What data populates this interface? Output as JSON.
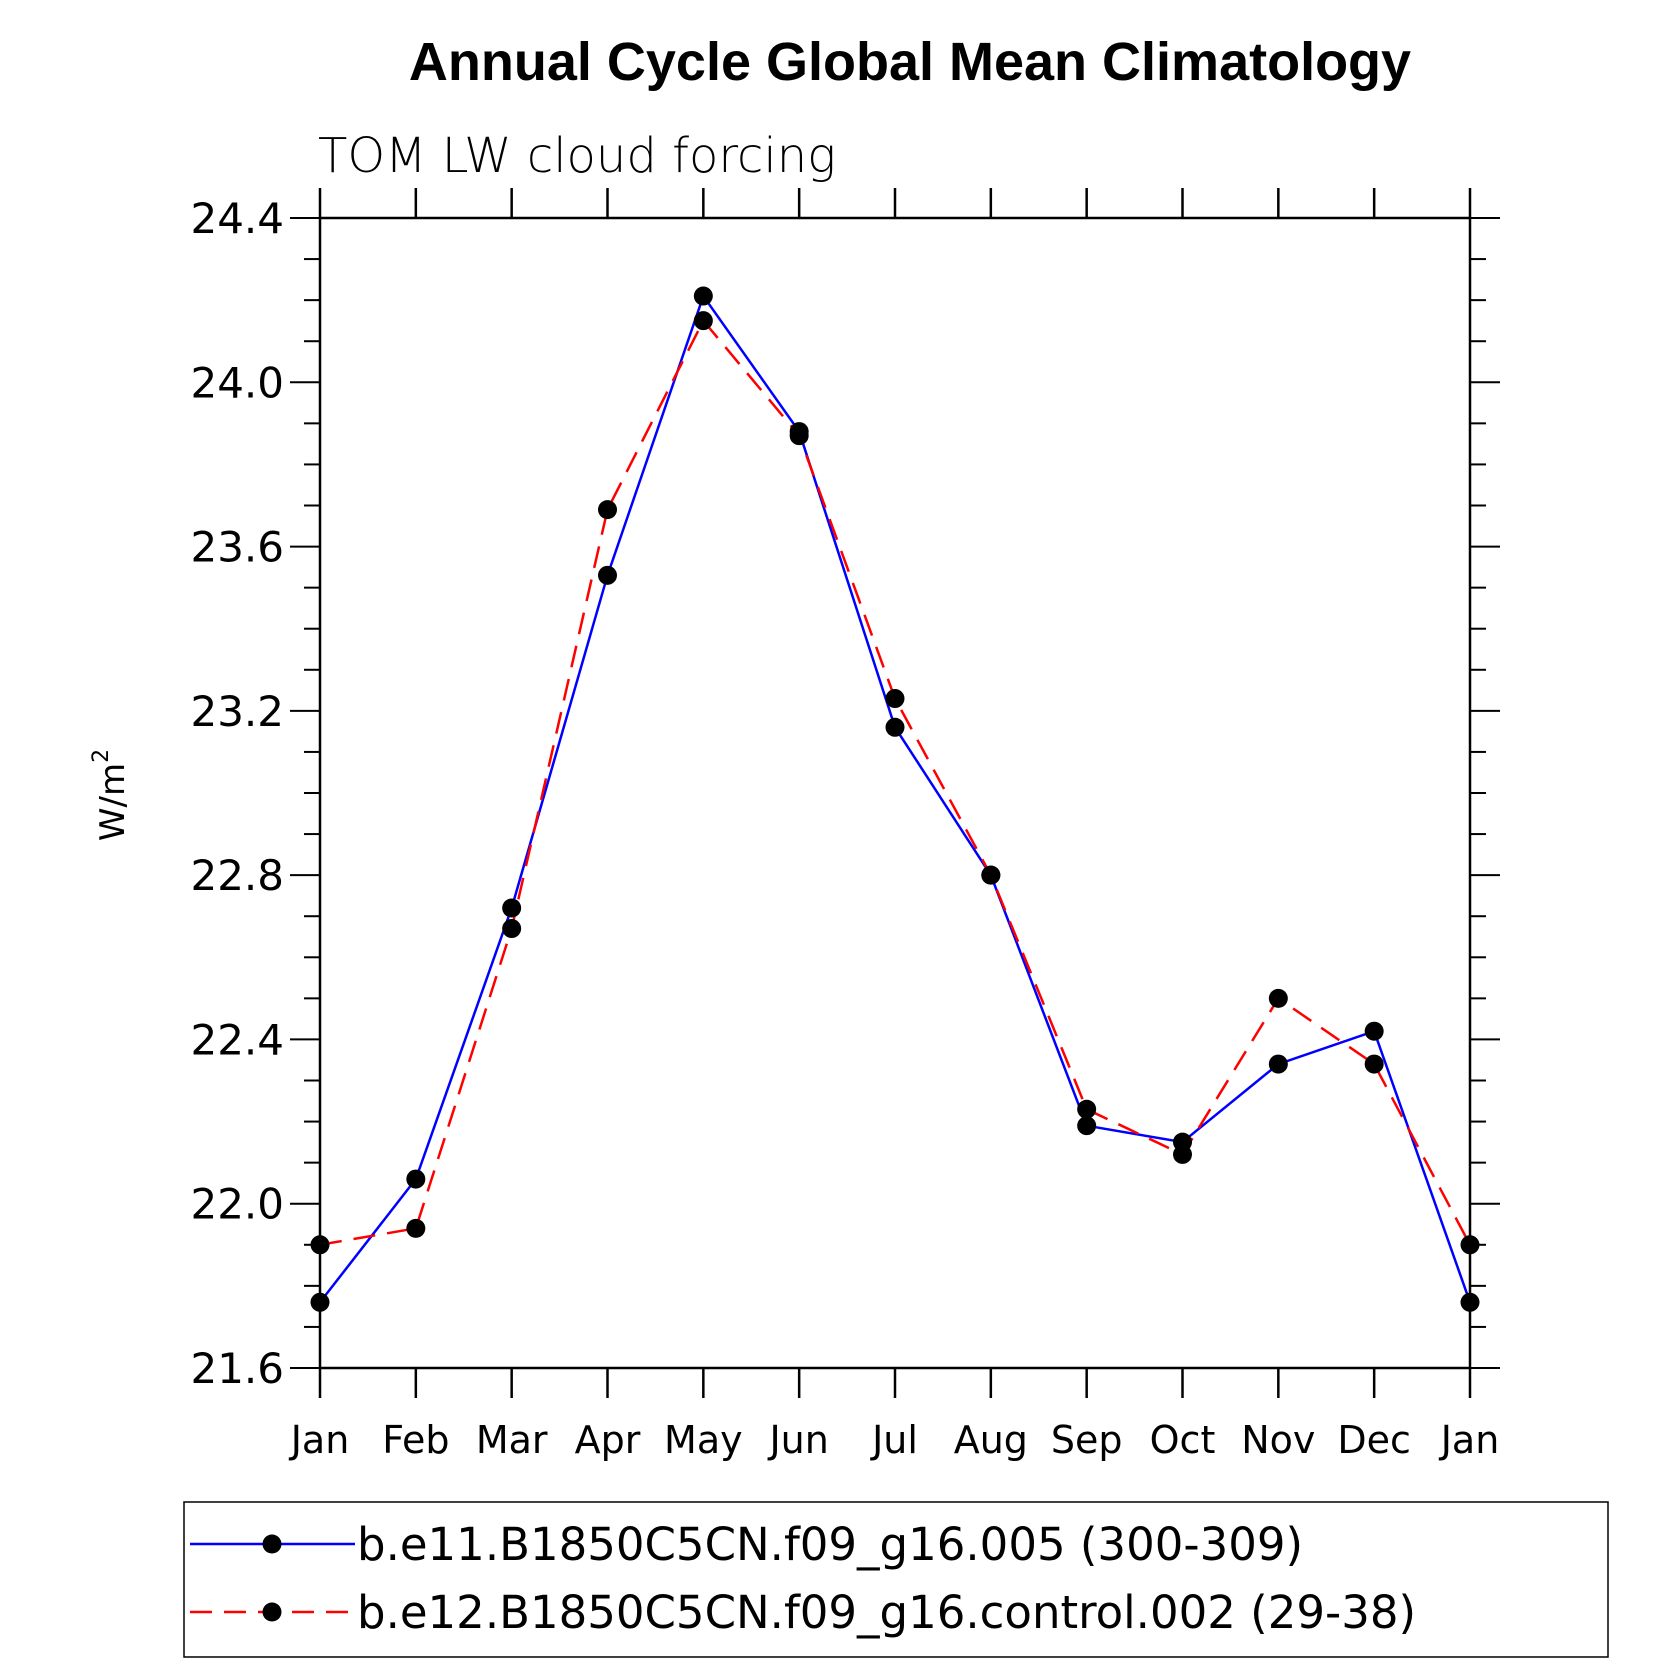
{
  "chart_data": {
    "type": "line",
    "title": "Annual Cycle Global Mean Climatology",
    "subtitle": "TOM LW cloud forcing",
    "ylabel": "W/m",
    "ylabel_sup": "2",
    "xlabel": "",
    "categories": [
      "Jan",
      "Feb",
      "Mar",
      "Apr",
      "May",
      "Jun",
      "Jul",
      "Aug",
      "Sep",
      "Oct",
      "Nov",
      "Dec",
      "Jan"
    ],
    "ylim": [
      21.6,
      24.4
    ],
    "yticks": [
      "21.6",
      "22.0",
      "22.4",
      "22.8",
      "23.2",
      "23.6",
      "24.0",
      "24.4"
    ],
    "grid": false,
    "legend_position": "bottom",
    "series": [
      {
        "name": "b.e11.B1850C5CN.f09_g16.005 (300-309)",
        "color": "#0000ff",
        "style": "solid",
        "values": [
          21.76,
          22.06,
          22.72,
          23.53,
          24.21,
          23.88,
          23.16,
          22.8,
          22.19,
          22.15,
          22.34,
          22.42,
          21.76
        ]
      },
      {
        "name": "b.e12.B1850C5CN.f09_g16.control.002 (29-38)",
        "color": "#ff0000",
        "style": "dashed",
        "values": [
          21.9,
          21.94,
          22.67,
          23.69,
          24.15,
          23.87,
          23.23,
          22.8,
          22.23,
          22.12,
          22.5,
          22.34,
          21.9
        ]
      }
    ]
  }
}
